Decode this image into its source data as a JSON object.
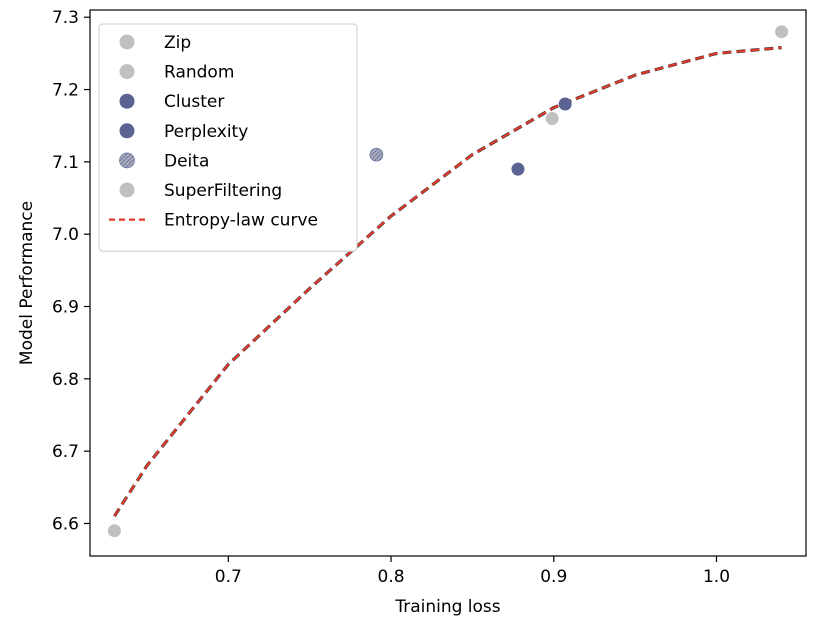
{
  "chart_data": {
    "type": "scatter",
    "xlabel": "Training loss",
    "ylabel": "Model Performance",
    "xlim": [
      0.615,
      1.055
    ],
    "ylim": [
      6.555,
      7.31
    ],
    "xticks": [
      0.7,
      0.8,
      0.9,
      1.0
    ],
    "xtick_labels": [
      "0.7",
      "0.8",
      "0.9",
      "1.0"
    ],
    "yticks": [
      6.6,
      6.7,
      6.8,
      6.9,
      7.0,
      7.1,
      7.2,
      7.3
    ],
    "ytick_labels": [
      "6.6",
      "6.7",
      "6.8",
      "6.9",
      "7.0",
      "7.1",
      "7.2",
      "7.3"
    ],
    "grid": false,
    "legend_position": "top-left",
    "series": [
      {
        "name": "Zip",
        "color": "#bfc1bf",
        "points": [
          {
            "x": 1.04,
            "y": 7.28
          }
        ]
      },
      {
        "name": "Random",
        "color": "#bfc1bf",
        "points": [
          {
            "x": 0.899,
            "y": 7.16
          }
        ]
      },
      {
        "name": "Cluster",
        "color": "#5a6391",
        "points": [
          {
            "x": 0.878,
            "y": 7.09
          }
        ]
      },
      {
        "name": "Perplexity",
        "color": "#5a6391",
        "points": [
          {
            "x": 0.907,
            "y": 7.18
          }
        ]
      },
      {
        "name": "Deita",
        "color": "#8f93a8",
        "hatched": true,
        "points": [
          {
            "x": 0.791,
            "y": 7.11
          }
        ]
      },
      {
        "name": "SuperFiltering",
        "color": "#bfc1bf",
        "points": [
          {
            "x": 0.63,
            "y": 6.59
          }
        ]
      }
    ],
    "curve": {
      "name": "Entropy-law curve",
      "color": "#e8392b",
      "style": "dashed",
      "x": [
        0.63,
        0.65,
        0.7,
        0.75,
        0.8,
        0.85,
        0.9,
        0.95,
        1.0,
        1.04
      ],
      "y": [
        6.61,
        6.68,
        6.82,
        6.925,
        7.025,
        7.11,
        7.175,
        7.22,
        7.25,
        7.258
      ]
    }
  }
}
